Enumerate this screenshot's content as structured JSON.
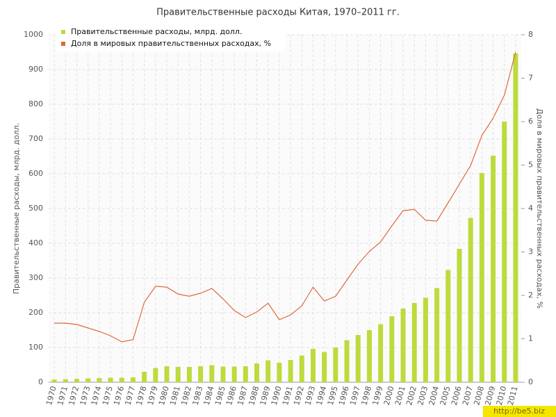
{
  "chart_data": {
    "type": "bar-line",
    "title": "Правительственные расходы Китая, 1970–2011 гг.",
    "y_label": "Правительственные расходы, млрд. долл.",
    "y2_label": "Доля в мировых правительственных расходах, %",
    "categories": [
      "1970",
      "1971",
      "1972",
      "1973",
      "1974",
      "1975",
      "1976",
      "1977",
      "1978",
      "1979",
      "1980",
      "1981",
      "1982",
      "1983",
      "1984",
      "1985",
      "1986",
      "1987",
      "1988",
      "1989",
      "1990",
      "1991",
      "1992",
      "1993",
      "1994",
      "1995",
      "1996",
      "1997",
      "1998",
      "1999",
      "2000",
      "2001",
      "2002",
      "2003",
      "2004",
      "2005",
      "2006",
      "2007",
      "2008",
      "2009",
      "2010",
      "2011"
    ],
    "series": [
      {
        "name": "Правительственные расходы, млрд. долл.",
        "color": "#bcdb3c",
        "type": "bar",
        "values": [
          8,
          9,
          10,
          11,
          12,
          13,
          13,
          14,
          30,
          41,
          46,
          44,
          44,
          46,
          49,
          45,
          45,
          46,
          54,
          63,
          56,
          64,
          77,
          96,
          87,
          100,
          121,
          136,
          150,
          167,
          190,
          212,
          228,
          243,
          271,
          323,
          384,
          473,
          602,
          652,
          750,
          946
        ]
      },
      {
        "name": "Доля в мировых правительственных расходах, %",
        "color": "#e0683a",
        "type": "line",
        "axis": "y2",
        "values": [
          1.36,
          1.36,
          1.33,
          1.25,
          1.17,
          1.07,
          0.93,
          0.98,
          1.84,
          2.21,
          2.19,
          2.03,
          1.98,
          2.05,
          2.16,
          1.92,
          1.65,
          1.49,
          1.62,
          1.82,
          1.44,
          1.55,
          1.76,
          2.19,
          1.87,
          1.98,
          2.35,
          2.72,
          3.01,
          3.23,
          3.6,
          3.95,
          3.98,
          3.73,
          3.71,
          4.13,
          4.56,
          4.99,
          5.68,
          6.08,
          6.61,
          7.6
        ]
      }
    ],
    "ylim": [
      0,
      1000
    ],
    "yticks": [
      0,
      100,
      200,
      300,
      400,
      500,
      600,
      700,
      800,
      900,
      1000
    ],
    "y2lim": [
      0,
      8
    ],
    "y2ticks": [
      0,
      1,
      2,
      3,
      4,
      5,
      6,
      7,
      8
    ],
    "grid": true,
    "legend": "top-left",
    "watermark": "http://be5.biz"
  }
}
